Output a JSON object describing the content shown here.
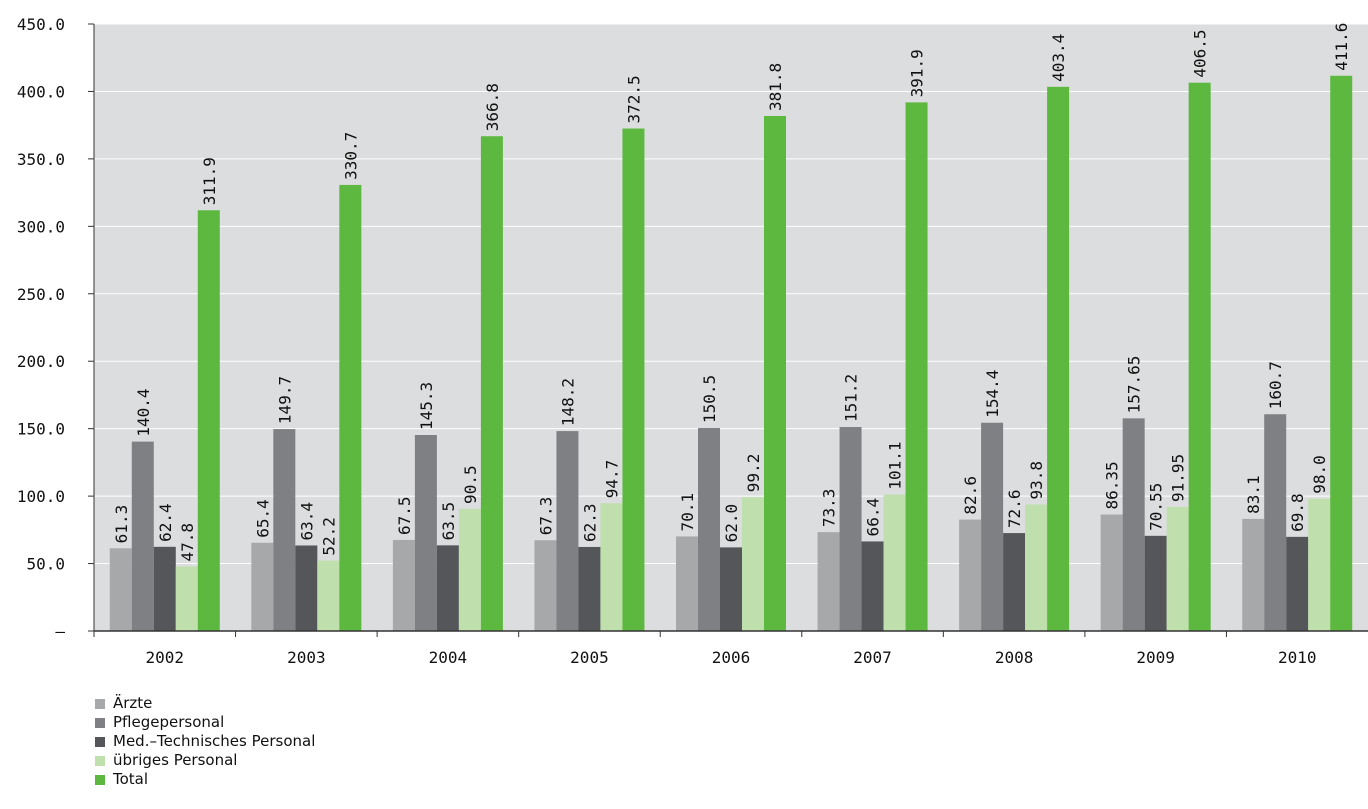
{
  "chart_data": {
    "type": "bar",
    "title": "",
    "xlabel": "",
    "ylabel": "",
    "ylim": [
      0,
      450
    ],
    "yticks": [
      0,
      50,
      100,
      150,
      200,
      250,
      300,
      350,
      400,
      450
    ],
    "ytick_labels": [
      "–",
      "50.0",
      "100.0",
      "150.0",
      "200.0",
      "250.0",
      "300.0",
      "350.0",
      "400.0",
      "450.0"
    ],
    "grid": false,
    "legend_position": "bottom-left",
    "categories": [
      "2002",
      "2003",
      "2004",
      "2005",
      "2006",
      "2007",
      "2008",
      "2009",
      "2010"
    ],
    "series": [
      {
        "name": "Ärzte",
        "color": "#a7a8aa",
        "values": [
          61.3,
          65.4,
          67.5,
          67.3,
          70.1,
          73.3,
          82.6,
          86.35,
          83.1
        ],
        "labels": [
          "61.3",
          "65.4",
          "67.5",
          "67.3",
          "70.1",
          "73.3",
          "82.6",
          "86.35",
          "83.1"
        ]
      },
      {
        "name": "Pflegepersonal",
        "color": "#7f8083",
        "values": [
          140.4,
          149.7,
          145.3,
          148.2,
          150.5,
          151.2,
          154.4,
          157.65,
          160.7
        ],
        "labels": [
          "140.4",
          "149.7",
          "145.3",
          "148.2",
          "150.5",
          "151.2",
          "154.4",
          "157.65",
          "160.7"
        ]
      },
      {
        "name": "Med.–Technisches Personal",
        "color": "#555659",
        "values": [
          62.4,
          63.4,
          63.5,
          62.3,
          62.0,
          66.4,
          72.6,
          70.55,
          69.8
        ],
        "labels": [
          "62.4",
          "63.4",
          "63.5",
          "62.3",
          "62.0",
          "66.4",
          "72.6",
          "70.55",
          "69.8"
        ]
      },
      {
        "name": "übriges Personal",
        "color": "#bfe0ac",
        "values": [
          47.8,
          52.2,
          90.5,
          94.7,
          99.2,
          101.1,
          93.8,
          91.95,
          98.0
        ],
        "labels": [
          "47.8",
          "52.2",
          "90.5",
          "94.7",
          "99.2",
          "101.1",
          "93.8",
          "91.95",
          "98.0"
        ]
      },
      {
        "name": "Total",
        "color": "#5cb83e",
        "values": [
          311.9,
          330.7,
          366.8,
          372.5,
          381.8,
          391.9,
          403.4,
          406.5,
          411.6
        ],
        "labels": [
          "311.9",
          "330.7",
          "366.8",
          "372.5",
          "381.8",
          "391.9",
          "403.4",
          "406.5",
          "411.6"
        ]
      }
    ]
  },
  "colors": {
    "plot_background": "#dcdddf",
    "axis": "#333333"
  }
}
